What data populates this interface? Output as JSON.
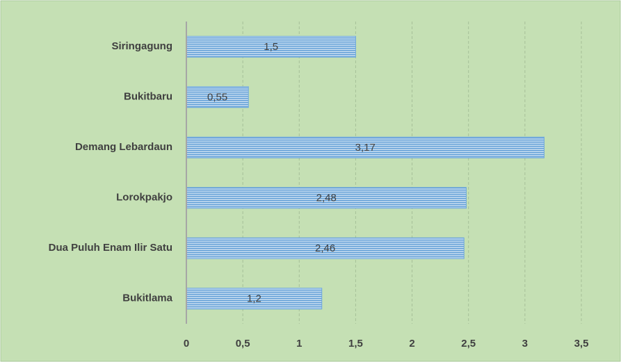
{
  "chart_data": {
    "type": "hbar",
    "categories": [
      "Siringagung",
      "Bukitbaru",
      "Demang Lebardaun",
      "Lorokpakjo",
      "Dua Puluh Enam Ilir Satu",
      "Bukitlama"
    ],
    "values": [
      1.5,
      0.55,
      3.17,
      2.48,
      2.46,
      1.2
    ],
    "value_labels": [
      "1,5",
      "0,55",
      "3,17",
      "2,48",
      "2,46",
      "1,2"
    ],
    "color": "#9dc3e6",
    "xlim": [
      0,
      3.5
    ],
    "xticks": [
      0,
      {
        "value": 0.5,
        "label": "0,5"
      },
      1,
      {
        "value": 1.5,
        "label": "1,5"
      },
      2,
      {
        "value": 2.5,
        "label": "2,5"
      },
      3,
      {
        "value": 3.5,
        "label": "3,5"
      }
    ],
    "grid": true
  }
}
